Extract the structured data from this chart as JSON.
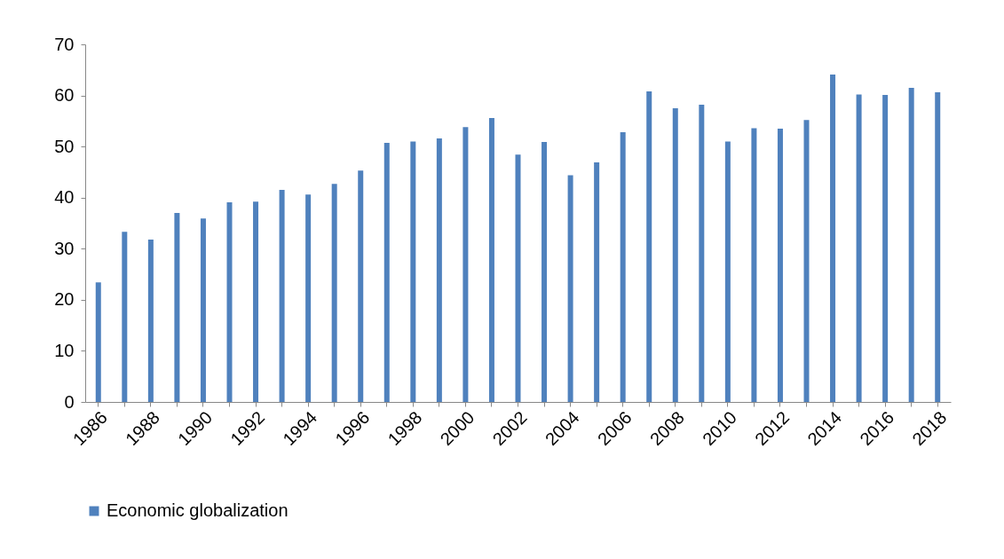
{
  "chart_data": {
    "type": "bar",
    "categories": [
      "1986",
      null,
      "1988",
      null,
      "1990",
      null,
      "1992",
      null,
      "1994",
      null,
      "1996",
      null,
      "1998",
      null,
      "2000",
      null,
      "2002",
      null,
      "2004",
      null,
      "2006",
      null,
      "2008",
      null,
      "2010",
      null,
      "2012",
      null,
      "2014",
      null,
      "2016",
      null,
      "2018"
    ],
    "series": [
      {
        "name": "Economic globalization",
        "color": "#4f81bd",
        "values": [
          23.4,
          33.3,
          31.8,
          37,
          35.9,
          39.1,
          39.2,
          41.5,
          40.6,
          42.7,
          45.3,
          50.7,
          51,
          51.6,
          53.8,
          55.6,
          48.4,
          50.9,
          44.4,
          46.9,
          52.8,
          60.8,
          57.5,
          58.2,
          51,
          53.6,
          53.5,
          55.2,
          64.1,
          60.2,
          60.1,
          61.5,
          60.6
        ]
      }
    ],
    "ylim": [
      0,
      70
    ],
    "yticks": [
      0,
      10,
      20,
      30,
      40,
      50,
      60,
      70
    ],
    "grid": false,
    "legend": "bottom"
  }
}
